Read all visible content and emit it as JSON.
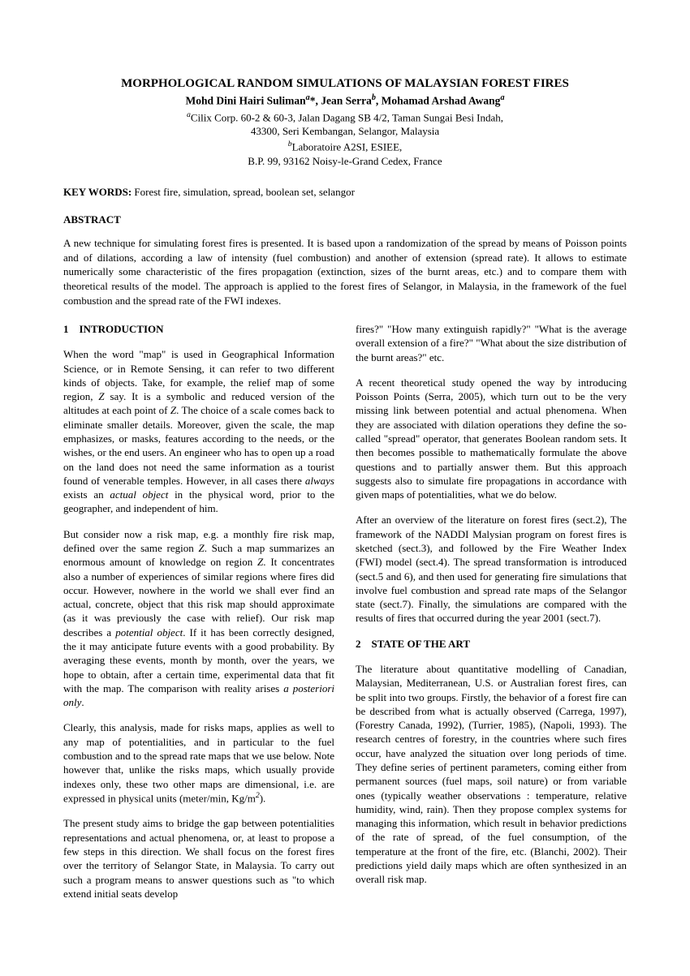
{
  "title": "MORPHOLOGICAL RANDOM SIMULATIONS OF MALAYSIAN FOREST FIRES",
  "authors_html": "Mohd Dini Hairi Suliman<sup class='super-a'>a</sup>*, Jean Serra<sup class='super-b'>b</sup>, Mohamad Arshad Awang<sup class='super-a'>a</sup>",
  "affil1_html": "<sup class='super-a'>a</sup>Cilix Corp. 60-2 & 60-3, Jalan Dagang SB 4/2, Taman Sungai Besi Indah,",
  "affil2": "43300, Seri Kembangan, Selangor, Malaysia",
  "affil3_html": "<sup class='super-b'>b</sup>Laboratoire A2SI, ESIEE,",
  "affil4": "B.P. 99, 93162 Noisy-le-Grand Cedex, France",
  "keywords_label": "KEY WORDS:",
  "keywords_text": " Forest fire, simulation, spread, boolean set, selangor",
  "abstract_label": "ABSTRACT",
  "abstract_text": "A new technique for simulating forest fires is presented. It is based upon a randomization of the spread by means of Poisson points and of dilations, according a law of intensity (fuel combustion) and another of extension (spread rate). It allows to estimate numerically some characteristic of the fires propagation (extinction, sizes of the burnt areas, etc.) and to compare them with theoretical results of the model. The approach is applied to the forest fires of Selangor, in Malaysia, in the framework of the fuel combustion and the spread rate of the FWI indexes.",
  "section1_heading": "1 INTRODUCTION",
  "col1_p1_html": "When the word \"map\" is used in Geographical Information Science, or in Remote Sensing, it can refer to two different kinds of objects. Take, for example, the relief map of some region, <span class='italic'>Z</span> say. It is a symbolic and reduced version of the altitudes at each point of <span class='italic'>Z</span>. The choice of a scale comes back to eliminate smaller details. Moreover, given the scale, the map emphasizes, or masks, features according to the needs, or the wishes, or the end users. An engineer who has to open up a road on the land does not need the same information as a tourist found of venerable temples. However, in all cases there <span class='italic'>always</span> exists an <span class='italic'>actual object</span> in the physical word, prior to the geographer, and independent of him.",
  "col1_p2_html": "But consider now a risk map, e.g. a monthly fire risk map, defined over the same region <span class='italic'>Z</span>. Such a map summarizes an enormous amount of knowledge on region <span class='italic'>Z</span>. It concentrates also a number of experiences of similar regions where fires did occur. However, nowhere in the world we shall ever find an actual, concrete, object that this risk map should approximate (as it was previously the case with relief). Our risk map describes a <span class='italic'>potential object</span>. If it has been correctly designed, the it may anticipate future events with a good probability. By averaging these events, month by month, over the years, we hope to obtain, after a certain time, experimental data that fit with the map. The comparison with reality arises <span class='italic'>a posteriori only</span>.",
  "col1_p3_html": "Clearly, this analysis, made for risks maps, applies as well to any map of potentialities, and in particular to the fuel combustion and to the spread rate maps that we use below. Note however that, unlike the risks maps, which usually provide indexes only, these two other maps are dimensional, i.e. are expressed in physical units (meter/min, Kg/m<sup>2</sup>).",
  "col1_p4": "The present study aims to bridge the gap between potentialities representations and actual phenomena, or, at least to propose a few steps in this direction. We shall focus on the forest fires over the territory of Selangor State, in Malaysia. To carry out such a program means to answer questions such as \"to which extend initial seats develop",
  "col2_p1": "fires?\" \"How many extinguish rapidly?\" \"What is the average overall extension of a fire?\" \"What about the size distribution of the burnt areas?\" etc.",
  "col2_p2": "A recent theoretical study opened the way by introducing Poisson Points (Serra, 2005), which turn out to be the very missing link between potential and actual phenomena. When they are associated with dilation operations they define the so-called \"spread\" operator, that generates Boolean random sets. It then becomes possible to mathematically formulate the above questions and to partially answer them. But this approach suggests also to simulate fire propagations in accordance with given maps of potentialities, what we do below.",
  "col2_p3": "After an overview of the literature on forest fires (sect.2), The framework of the NADDI Malysian program on forest fires is sketched (sect.3), and followed by the Fire Weather Index (FWI) model (sect.4). The spread transformation is introduced (sect.5 and 6), and then used for generating fire simulations that involve fuel combustion and spread rate maps of the Selangor state (sect.7). Finally, the simulations are compared with the results of fires that occurred during the year 2001 (sect.7).",
  "section2_heading": "2 STATE OF THE ART",
  "col2_p4": "The literature about quantitative modelling of Canadian, Malaysian, Mediterranean, U.S. or Australian forest fires, can be split into two groups. Firstly, the behavior of a forest fire can be described from what is actually observed (Carrega, 1997), (Forestry Canada, 1992), (Turrier, 1985), (Napoli, 1993). The research centres of forestry, in the countries where such fires occur, have analyzed the situation over long periods of time. They define series of pertinent parameters, coming either from permanent sources (fuel maps, soil nature) or from variable ones (typically weather observations : temperature, relative humidity, wind, rain). Then they propose complex systems for managing this information, which result in behavior predictions of the rate of spread, of the fuel consumption, of the temperature at the front of the fire, etc. (Blanchi, 2002). Their predictions yield daily maps which are often synthesized in an overall risk map."
}
